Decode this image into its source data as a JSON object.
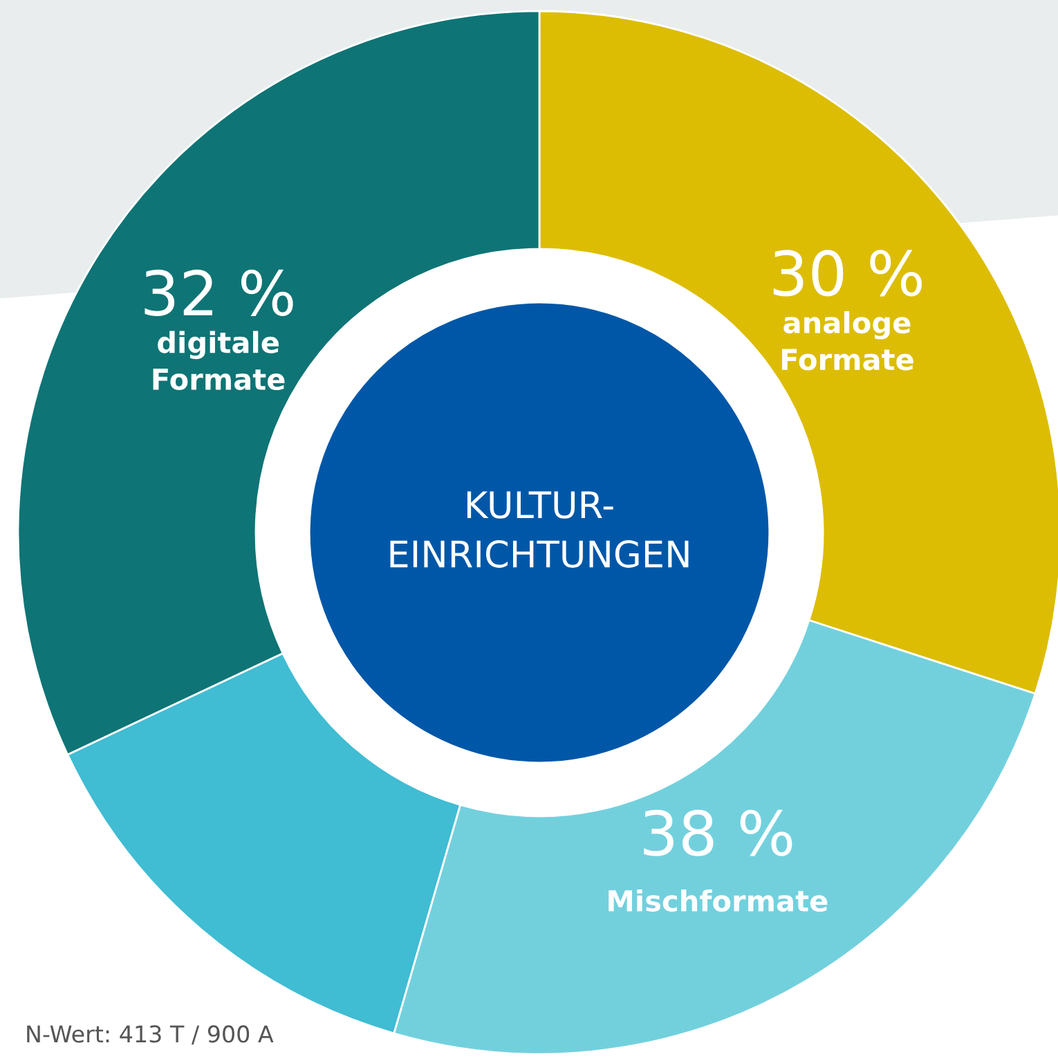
{
  "chart_data": {
    "type": "donut",
    "title": "KULTUR-\nEINRICHTUNGEN",
    "categories": [
      "analoge\nFormate",
      "Mischformate",
      null,
      "digitale\nFormate"
    ],
    "values": [
      30,
      24.5,
      13.5,
      32
    ],
    "colors": [
      "#dcbd04",
      "#72d0dd",
      "#40bcd3",
      "#0f7475"
    ],
    "value_labels": [
      "30 %",
      null,
      null,
      "32 %"
    ],
    "annotations": [
      "38 %",
      "N-Wert: 413 T / 900 A"
    ],
    "legend": false
  }
}
